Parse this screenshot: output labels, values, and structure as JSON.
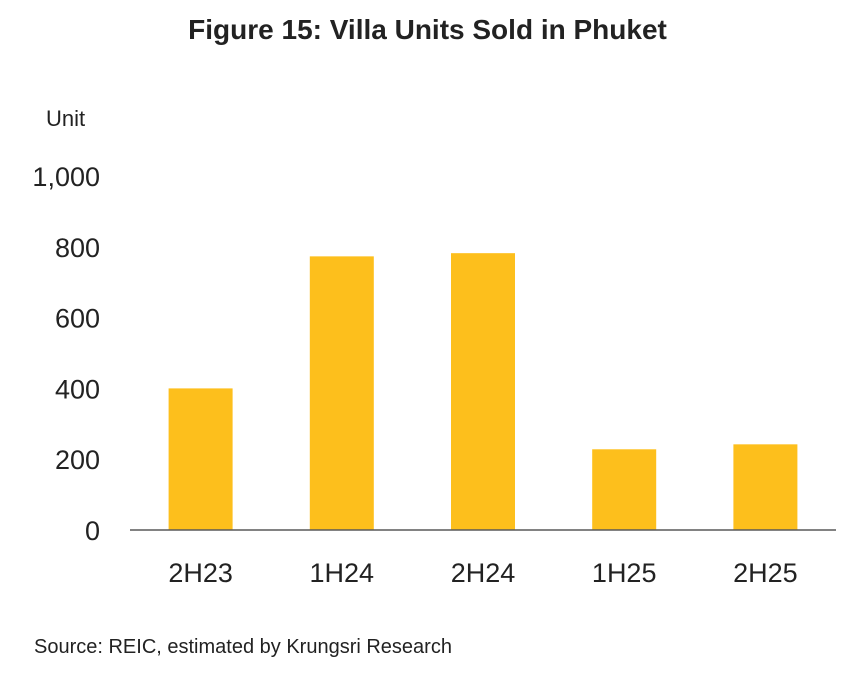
{
  "title": "Figure 15: Villa Units Sold in Phuket",
  "source": "Source: REIC, estimated by Krungsri Research",
  "colors": {
    "bar": "#FDBF1C",
    "axis": "#595959",
    "text": "#222222"
  },
  "chart_data": {
    "type": "bar",
    "title": "Figure 15: Villa Units Sold in Phuket",
    "xlabel": "",
    "ylabel": "Unit",
    "categories": [
      "2H23",
      "1H24",
      "2H24",
      "1H25",
      "2H25"
    ],
    "values": [
      400,
      773,
      782,
      228,
      242
    ],
    "ylim": [
      0,
      1000
    ],
    "yticks": [
      0,
      200,
      400,
      600,
      800,
      1000
    ],
    "ytick_labels": [
      "0",
      "200",
      "400",
      "600",
      "800",
      "1,000"
    ],
    "grid": false,
    "legend": "none"
  }
}
